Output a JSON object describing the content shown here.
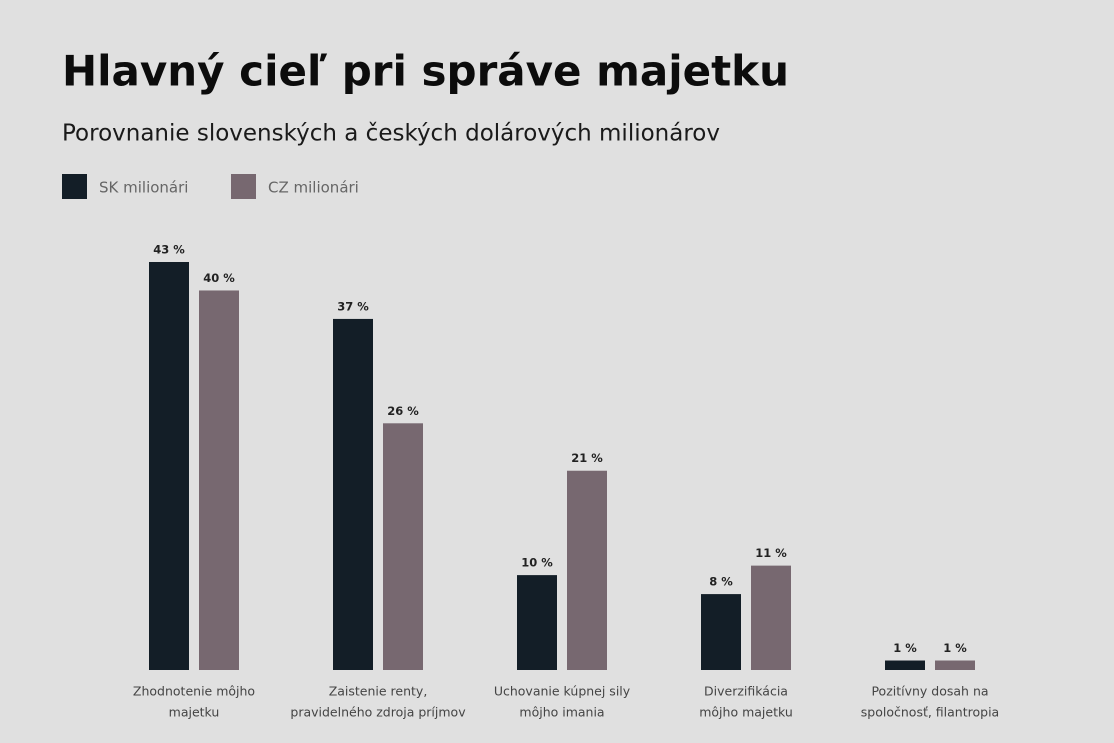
{
  "chart_data": {
    "type": "bar",
    "title": "Hlavný cieľ pri správe majetku",
    "subtitle": "Porovnanie slovenských a českých dolárových milionárov",
    "categories": [
      [
        "Zhodnotenie môjho",
        "majetku"
      ],
      [
        "Zaistenie renty,",
        "pravidelného zdroja príjmov"
      ],
      [
        "Uchovanie kúpnej sily",
        "môjho imania"
      ],
      [
        "Diverzifikácia",
        "môjho majetku"
      ],
      [
        "Pozitívny dosah na",
        "spoločnosť, filantropia"
      ]
    ],
    "series": [
      {
        "name": "SK milionári",
        "color": "#131e27",
        "values": [
          43,
          37,
          10,
          8,
          1
        ],
        "value_labels": [
          "43 %",
          "37 %",
          "10 %",
          "8 %",
          "1 %"
        ]
      },
      {
        "name": "CZ milionári",
        "color": "#776870",
        "values": [
          40,
          26,
          21,
          11,
          1
        ],
        "value_labels": [
          "40 %",
          "26 %",
          "21 %",
          "11 %",
          "1 %"
        ]
      }
    ],
    "legend": "top-left"
  }
}
